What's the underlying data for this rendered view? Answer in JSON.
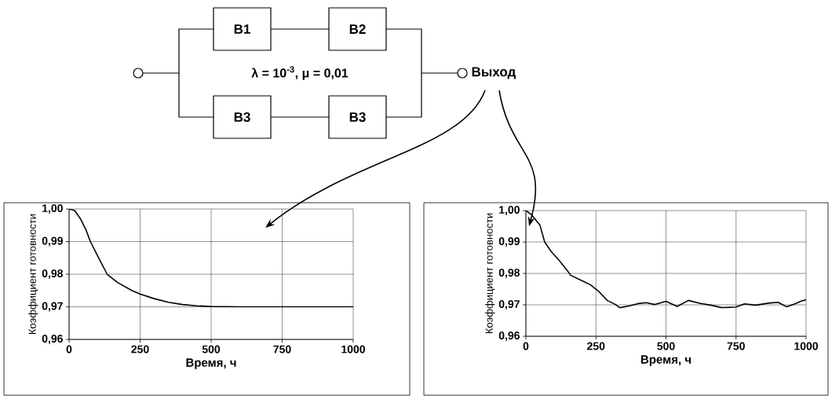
{
  "chart_data": [
    {
      "type": "other",
      "annotations": [
        "B1",
        "B2",
        "B3",
        "B3",
        "λ = 10$^{-3}$, μ = 0,01",
        "Выход"
      ]
    },
    {
      "type": "line",
      "xlabel": "Время, ч",
      "ylabel": "Коэффициент готовности",
      "color": "#000000",
      "grid": true,
      "marker": "none",
      "x": [
        0,
        20,
        40,
        60,
        75,
        100,
        134,
        170,
        221,
        250,
        300,
        350,
        400,
        450,
        500,
        600,
        800,
        1000
      ],
      "values": [
        1.0,
        0.9995,
        0.997,
        0.9935,
        0.99,
        0.9857,
        0.98,
        0.9775,
        0.975,
        0.9739,
        0.9725,
        0.9714,
        0.9707,
        0.9703,
        0.9701,
        0.97,
        0.97,
        0.97
      ],
      "xlim": [
        0,
        1000
      ],
      "ylim": [
        0.96,
        1.0
      ],
      "xticks": [
        0,
        250,
        500,
        750,
        1000
      ],
      "yticks": [
        {
          "value": 0.96,
          "label": "0,96"
        },
        {
          "value": 0.97,
          "label": "0,97"
        },
        {
          "value": 0.98,
          "label": "0,98"
        },
        {
          "value": 0.99,
          "label": "0,99"
        },
        {
          "value": 1.0,
          "label": "1,00"
        }
      ]
    },
    {
      "type": "line",
      "xlabel": "Время, ч",
      "ylabel": "Коэффициент готовности",
      "color": "#000000",
      "grid": true,
      "marker": "none",
      "x": [
        0,
        20,
        50,
        67,
        90,
        120,
        150,
        160,
        200,
        230,
        260,
        290,
        320,
        335,
        370,
        400,
        430,
        460,
        500,
        540,
        580,
        620,
        660,
        700,
        750,
        780,
        820,
        870,
        900,
        930,
        960,
        980,
        1000
      ],
      "values": [
        1.0,
        0.9987,
        0.9954,
        0.99,
        0.987,
        0.984,
        0.9806,
        0.9794,
        0.9777,
        0.9764,
        0.9743,
        0.9714,
        0.9701,
        0.9691,
        0.9697,
        0.9704,
        0.9707,
        0.9701,
        0.9711,
        0.9695,
        0.9714,
        0.9705,
        0.9699,
        0.9691,
        0.9693,
        0.9703,
        0.9699,
        0.9706,
        0.9708,
        0.9694,
        0.9703,
        0.9711,
        0.9716
      ],
      "xlim": [
        0,
        1000
      ],
      "ylim": [
        0.96,
        1.0
      ],
      "xticks": [
        0,
        250,
        500,
        750,
        1000
      ],
      "yticks": [
        {
          "value": 0.96,
          "label": "0,96"
        },
        {
          "value": 0.97,
          "label": "0,97"
        },
        {
          "value": 0.98,
          "label": "0,98"
        },
        {
          "value": 0.99,
          "label": "0,99"
        },
        {
          "value": 1.0,
          "label": "1,00"
        }
      ]
    }
  ]
}
